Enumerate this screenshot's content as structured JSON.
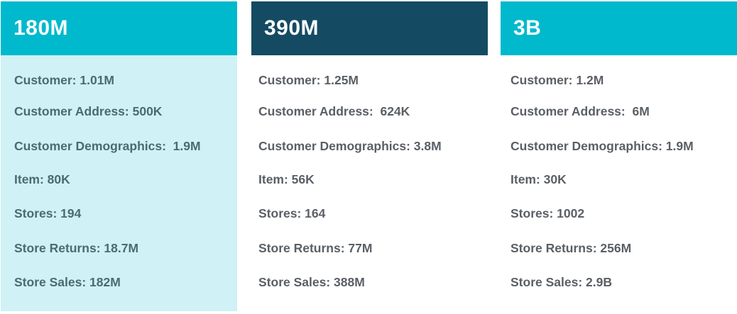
{
  "panels": [
    {
      "title": "180M",
      "colors": {
        "header": "#00b9cc",
        "body": "#d0f1f5"
      },
      "stats": [
        "Customer: 1.01M",
        "Customer Address: 500K",
        "Customer Demographics:  1.9M",
        "Item: 80K",
        "Stores: 194",
        "Store Returns: 18.7M",
        "Store Sales: 182M"
      ]
    },
    {
      "title": "390M",
      "colors": {
        "header": "#144b62",
        "body": "#ffffff"
      },
      "stats": [
        "Customer: 1.25M",
        "Customer Address:  624K",
        "Customer Demographics: 3.8M",
        "Item: 56K",
        "Stores: 164",
        "Store Returns: 77M",
        "Store Sales: 388M"
      ]
    },
    {
      "title": "3B",
      "colors": {
        "header": "#00b9cc",
        "body": "#ffffff"
      },
      "stats": [
        "Customer: 1.2M",
        "Customer Address:  6M",
        "Customer Demographics: 1.9M",
        "Item: 30K",
        "Stores: 1002",
        "Store Returns: 256M",
        "Store Sales: 2.9B"
      ]
    }
  ]
}
